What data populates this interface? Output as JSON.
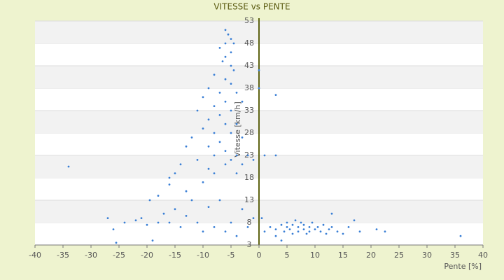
{
  "chart_data": {
    "type": "scatter",
    "title": "VITESSE vs PENTE",
    "x_label": "Pente [%]",
    "y_label": "Vitesse [km/h]",
    "xlim": [
      -40,
      40
    ],
    "xticks": [
      -40,
      -35,
      -30,
      -25,
      -20,
      -15,
      -10,
      -5,
      0,
      5,
      10,
      15,
      20,
      25,
      30,
      35,
      40
    ],
    "ylim": [
      3,
      53
    ],
    "yticks": [
      3,
      8,
      13,
      18,
      23,
      28,
      33,
      38,
      43,
      48,
      53
    ],
    "grid": true,
    "color": "#3a7fd5",
    "series": [
      {
        "name": null,
        "color": "#3a7fd5",
        "x": [
          -6,
          -5.5,
          -5,
          -6,
          -4.5,
          -7,
          -5,
          -6,
          -6.5,
          -5,
          -4.5,
          -8,
          -6,
          -5,
          -9,
          -7,
          -4,
          -10,
          -6,
          -3,
          -8,
          -5,
          -11,
          -7,
          -9,
          -6,
          -4,
          -10,
          -8,
          -5,
          -12,
          -3,
          -7,
          -9,
          -13,
          -6,
          -4,
          -2,
          -8,
          -11,
          -5,
          -1,
          1,
          3,
          -3,
          -6,
          -14,
          -9,
          -15,
          -16,
          -10,
          -8,
          -4,
          -27,
          -26,
          -25.5,
          -24,
          -22,
          -21,
          -20,
          -19,
          -18,
          -17,
          -16,
          -15,
          -14,
          -13,
          -12,
          -11,
          -10,
          -9,
          -8,
          -7,
          -6,
          -5,
          -4,
          -3,
          -2,
          -1,
          -19.5,
          -18,
          -16,
          -13,
          2,
          3,
          4,
          4.5,
          5,
          5,
          5.5,
          6,
          6,
          6.5,
          7,
          7,
          7.5,
          8,
          8,
          8.5,
          9,
          9,
          9.5,
          10,
          10.5,
          11,
          11.5,
          12,
          12.5,
          13,
          14,
          15,
          16,
          17,
          18,
          13,
          4,
          3,
          1,
          0.5,
          -34,
          36,
          22.5,
          21,
          3,
          0,
          0
        ],
        "values": [
          51,
          50,
          49,
          48,
          48,
          47,
          46,
          45,
          44,
          43,
          42,
          41,
          40,
          39,
          38,
          37,
          37,
          36,
          35,
          35,
          34,
          33,
          33,
          32,
          31,
          30,
          30,
          29,
          28,
          28,
          27,
          27,
          26,
          25,
          25,
          24,
          23,
          23,
          23,
          22,
          22,
          22,
          23,
          23,
          21,
          21,
          21,
          20,
          19,
          18,
          17,
          19,
          19,
          9,
          6.5,
          3.5,
          8,
          8.5,
          9,
          7.5,
          4,
          8,
          10,
          8,
          11,
          7,
          9.5,
          13,
          8,
          6,
          11.5,
          7,
          13,
          6,
          8,
          5,
          11,
          7,
          9,
          13,
          14,
          16.5,
          15,
          7,
          6.5,
          7.5,
          6,
          8,
          7,
          6.5,
          7.5,
          5.5,
          8.5,
          7,
          6,
          8,
          6.5,
          7.5,
          5.5,
          7,
          6,
          8,
          6.5,
          7,
          6,
          7.5,
          5.5,
          6.5,
          7,
          6,
          5.5,
          7,
          8.5,
          6,
          10,
          4,
          5,
          6,
          9,
          20.5,
          5,
          6,
          6.5,
          36.5,
          42,
          38
        ]
      }
    ]
  }
}
